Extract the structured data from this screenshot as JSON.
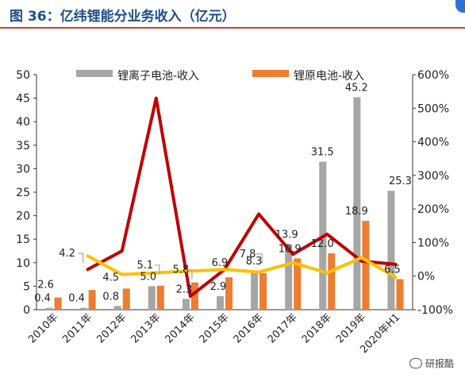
{
  "figure": {
    "title": "图 36：亿纬锂能分业务收入（亿元）",
    "watermark": "研报酷",
    "watermark_icon": "wechat-icon"
  },
  "chart_data": {
    "type": "bar",
    "categories": [
      "2010年",
      "2011年",
      "2012年",
      "2013年",
      "2014年",
      "2015年",
      "2016年",
      "2017年",
      "2018年",
      "2019年",
      "2020年H1"
    ],
    "ylim": [
      0,
      50
    ],
    "y_ticks": [
      "0",
      "5",
      "10",
      "15",
      "20",
      "25",
      "30",
      "35",
      "40",
      "45",
      "50"
    ],
    "y2lim": [
      -100,
      600
    ],
    "y2_ticks": [
      "-100%",
      "0%",
      "100%",
      "200%",
      "300%",
      "400%",
      "500%",
      "600%"
    ],
    "series": [
      {
        "name": "锂离子电池-收入",
        "kind": "bar",
        "axis": "left",
        "color": "#a6a6a6",
        "values": [
          0.4,
          0.4,
          0.8,
          5.0,
          2.3,
          2.9,
          8.3,
          13.9,
          31.5,
          45.2,
          25.3
        ]
      },
      {
        "name": "锂原电池-收入",
        "kind": "bar",
        "axis": "left",
        "color": "#ed7d31",
        "values": [
          2.6,
          4.2,
          4.5,
          5.1,
          5.8,
          6.9,
          7.8,
          10.9,
          12.0,
          18.9,
          6.5
        ]
      },
      {
        "kind": "line",
        "axis": "right",
        "color": "#c00000",
        "values": [
          null,
          20,
          75,
          530,
          -60,
          20,
          185,
          65,
          125,
          45,
          35
        ]
      },
      {
        "kind": "line",
        "axis": "right",
        "color": "#ffc000",
        "values": [
          null,
          60,
          5,
          10,
          15,
          20,
          12,
          40,
          10,
          55,
          -3
        ]
      }
    ],
    "data_labels": {
      "li_ion": [
        "0.4",
        "0.4",
        "0.8",
        "5.0",
        "2.3",
        "2.9",
        "8.3",
        "13.9",
        "31.5",
        "45.2",
        "25.3"
      ],
      "primary": [
        "2.6",
        "4.2",
        "4.5",
        "5.1",
        "5.8",
        "6.9",
        "7.8",
        "10.9",
        "12.0",
        "18.9",
        "6.5"
      ]
    },
    "grid": false,
    "legend_position": "top"
  }
}
